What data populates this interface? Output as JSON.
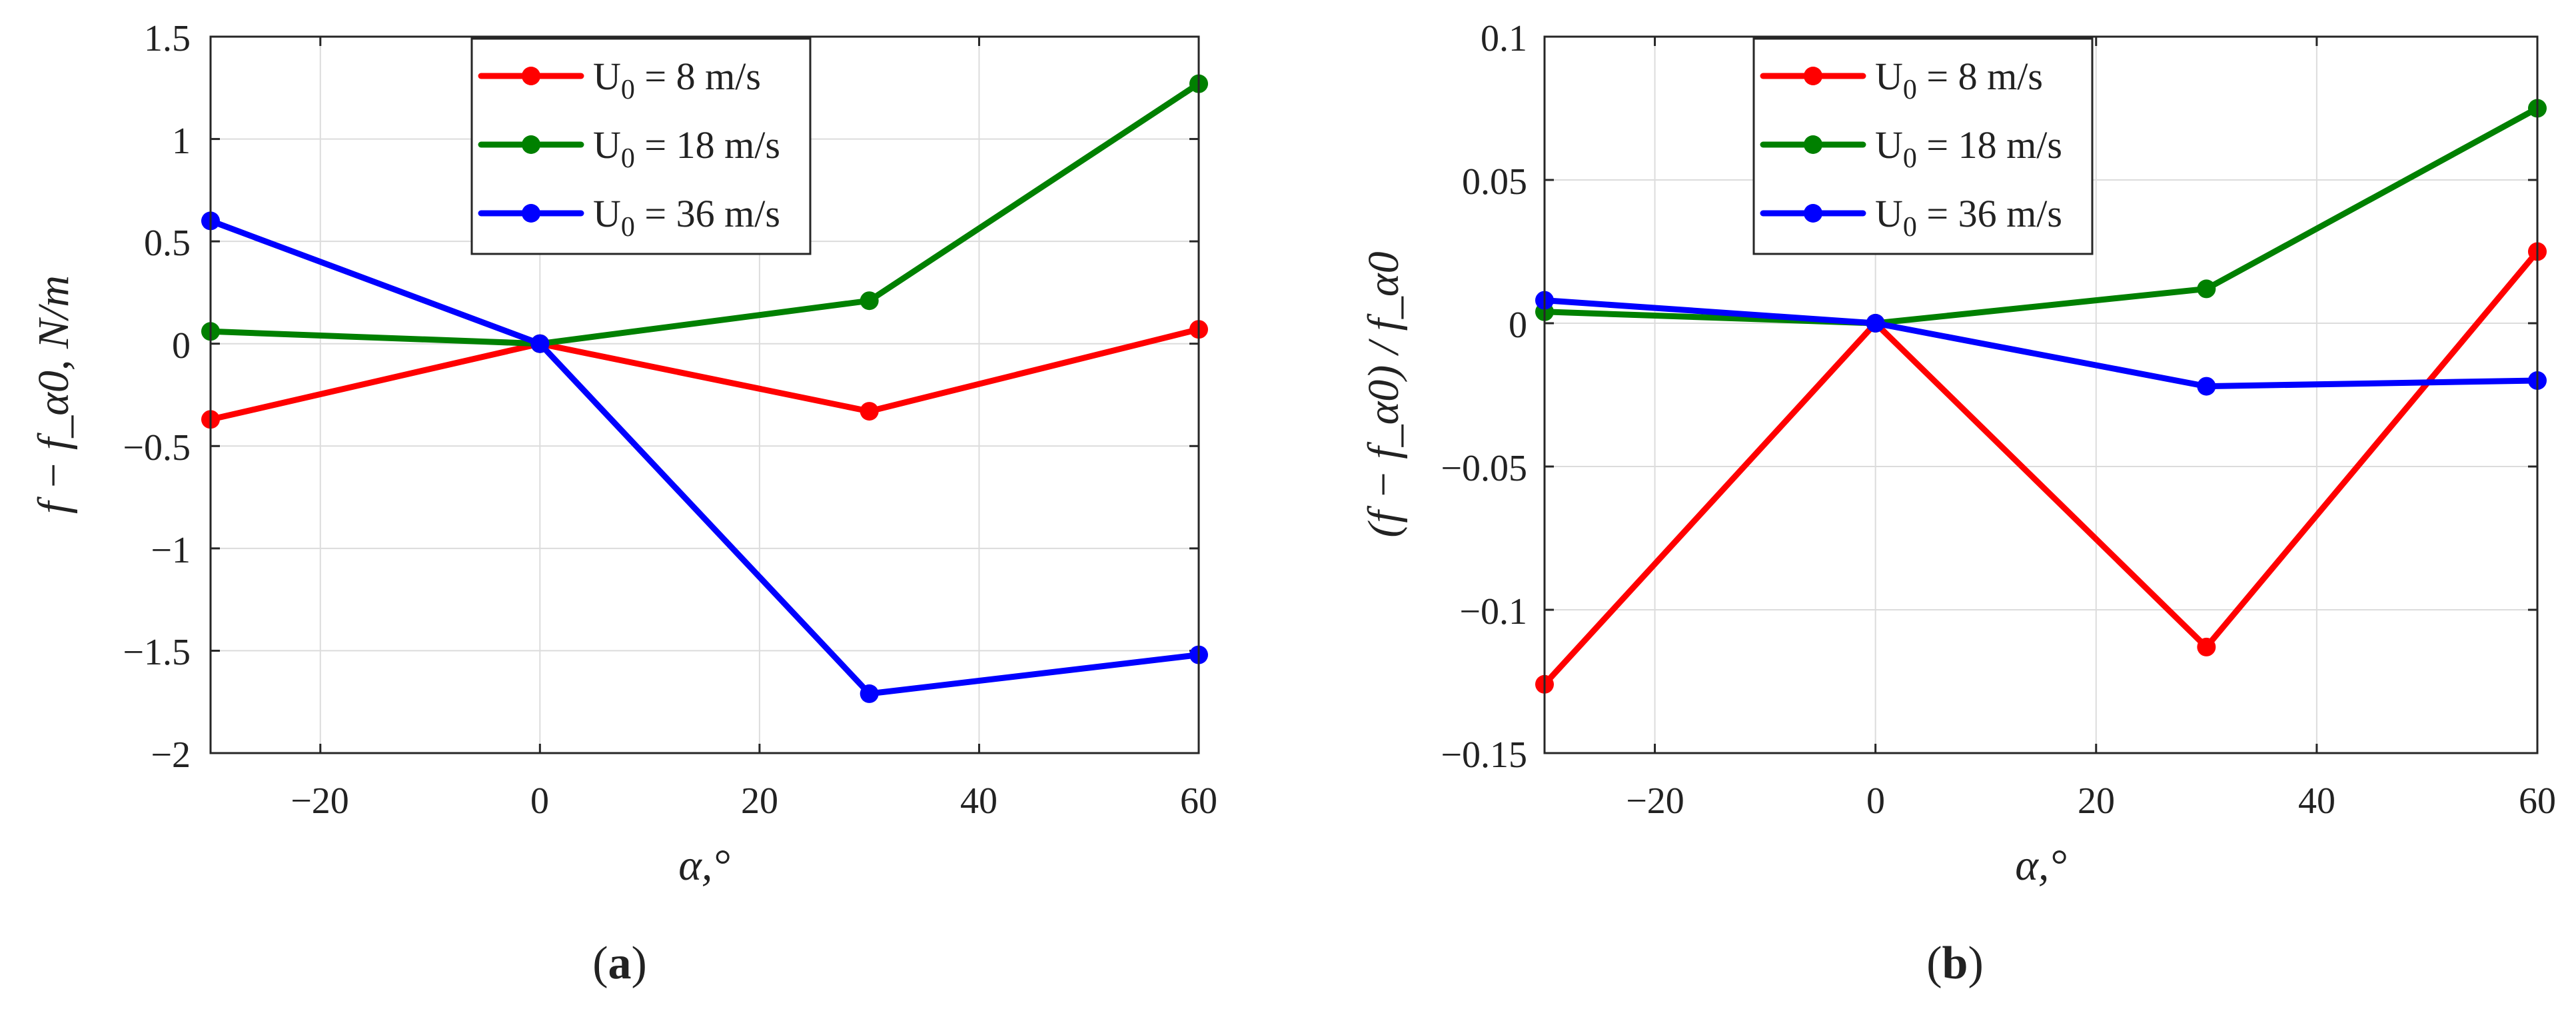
{
  "chart_data": [
    {
      "panel": "a",
      "type": "line",
      "caption": {
        "open": "(",
        "letter": "a",
        "close": ")"
      },
      "xlabel": "α,°",
      "ylabel": "f − f_α0, N/m",
      "xlim": [
        -30,
        60
      ],
      "ylim": [
        -2,
        1.5
      ],
      "xticks": [
        -20,
        0,
        20,
        40,
        60
      ],
      "xtick_labels": [
        "−20",
        "0",
        "20",
        "40",
        "60"
      ],
      "yticks": [
        1.5,
        1,
        0.5,
        0,
        -0.5,
        -1,
        -1.5,
        -2
      ],
      "ytick_labels": [
        "1.5",
        "1",
        "0.5",
        "0",
        "−0.5",
        "−1",
        "−1.5",
        "−2"
      ],
      "grid": true,
      "legend_position": "top-center",
      "x": [
        -30,
        0,
        30,
        60
      ],
      "series": [
        {
          "name": "U0 = 8 m/s",
          "label_main": "U",
          "label_sub": "0",
          "label_rest": " = 8 m/s",
          "color": "#ff0000",
          "values": [
            -0.37,
            0,
            -0.33,
            0.07
          ]
        },
        {
          "name": "U0 = 18 m/s",
          "label_main": "U",
          "label_sub": "0",
          "label_rest": " = 18 m/s",
          "color": "#008000",
          "values": [
            0.06,
            0,
            0.21,
            1.27
          ]
        },
        {
          "name": "U0 = 36 m/s",
          "label_main": "U",
          "label_sub": "0",
          "label_rest": " = 36 m/s",
          "color": "#0000ff",
          "values": [
            0.6,
            0,
            -1.71,
            -1.52
          ]
        }
      ]
    },
    {
      "panel": "b",
      "type": "line",
      "caption": {
        "open": "(",
        "letter": "b",
        "close": ")"
      },
      "xlabel": "α,°",
      "ylabel": "(f − f_α0) / f_α0",
      "xlim": [
        -30,
        60
      ],
      "ylim": [
        -0.15,
        0.1
      ],
      "xticks": [
        -20,
        0,
        20,
        40,
        60
      ],
      "xtick_labels": [
        "−20",
        "0",
        "20",
        "40",
        "60"
      ],
      "yticks": [
        0.1,
        0.05,
        0,
        -0.05,
        -0.1,
        -0.15
      ],
      "ytick_labels": [
        "0.1",
        "0.05",
        "0",
        "−0.05",
        "−0.1",
        "−0.15"
      ],
      "grid": true,
      "legend_position": "top-center",
      "x": [
        -30,
        0,
        30,
        60
      ],
      "series": [
        {
          "name": "U0 = 8 m/s",
          "label_main": "U",
          "label_sub": "0",
          "label_rest": " = 8 m/s",
          "color": "#ff0000",
          "values": [
            -0.126,
            0,
            -0.113,
            0.025
          ]
        },
        {
          "name": "U0 = 18 m/s",
          "label_main": "U",
          "label_sub": "0",
          "label_rest": " = 18 m/s",
          "color": "#008000",
          "values": [
            0.004,
            0,
            0.012,
            0.075
          ]
        },
        {
          "name": "U0 = 36 m/s",
          "label_main": "U",
          "label_sub": "0",
          "label_rest": " = 36 m/s",
          "color": "#0000ff",
          "values": [
            0.008,
            0,
            -0.022,
            -0.02
          ]
        }
      ]
    }
  ]
}
